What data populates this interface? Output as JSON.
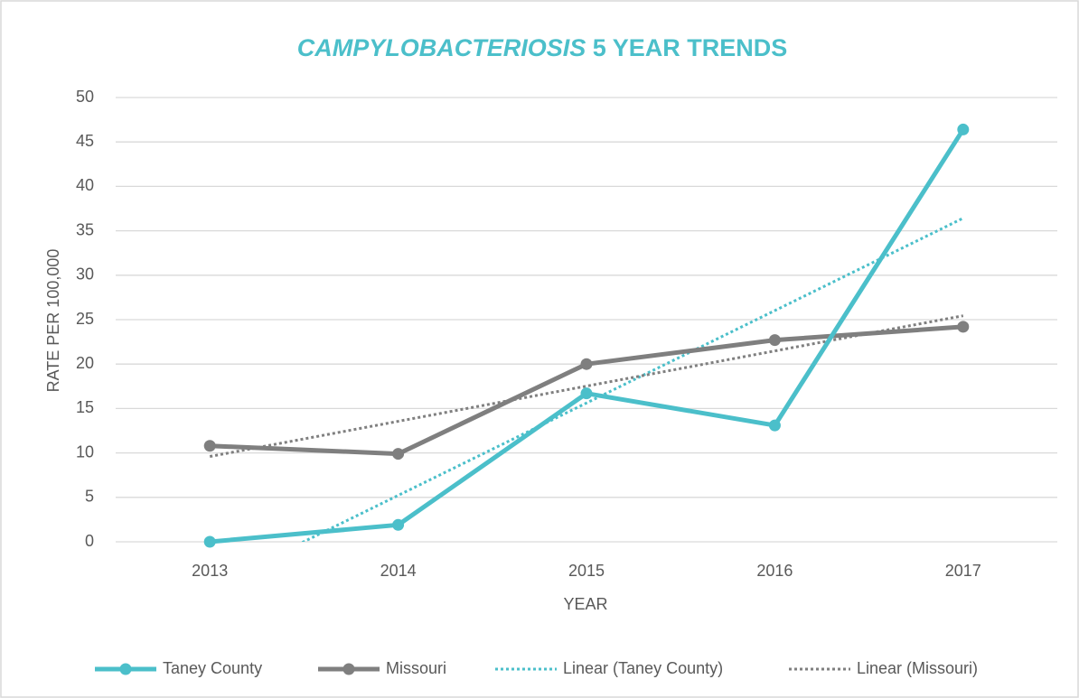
{
  "chart_data": {
    "type": "line",
    "title": "CAMPYLOBACTERIOSIS 5 YEAR TRENDS",
    "x_label": "YEAR",
    "y_label": "RATE PER 100,000",
    "categories": [
      "2013",
      "2014",
      "2015",
      "2016",
      "2017"
    ],
    "series": [
      {
        "name": "Taney County",
        "color": "#4bbfca",
        "values": [
          0,
          1.9,
          16.7,
          13.1,
          46.4
        ],
        "markers": true,
        "dashed": false
      },
      {
        "name": "Missouri",
        "color": "#7f7f7f",
        "values": [
          10.8,
          9.9,
          20,
          22.7,
          24.2
        ],
        "markers": true,
        "dashed": false
      },
      {
        "name": "Linear (Taney County)",
        "color": "#4bbfca",
        "values": [
          -5.18,
          5.22,
          15.62,
          26.02,
          36.42
        ],
        "markers": false,
        "dashed": true
      },
      {
        "name": "Linear (Missouri)",
        "color": "#7f7f7f",
        "values": [
          9.6,
          13.56,
          17.52,
          21.48,
          25.44
        ],
        "markers": false,
        "dashed": true
      }
    ],
    "ylim": [
      0,
      50
    ],
    "yticks": [
      0,
      5,
      10,
      15,
      20,
      25,
      30,
      35,
      40,
      45,
      50
    ],
    "grid": true,
    "legend": "bottom"
  }
}
